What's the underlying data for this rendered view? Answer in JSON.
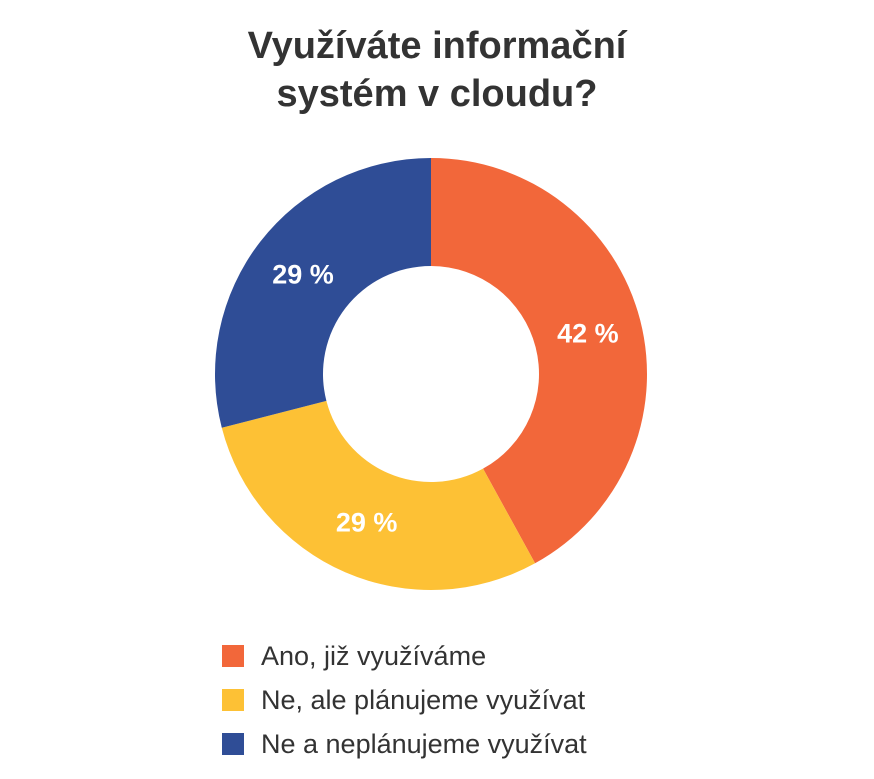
{
  "chart_data": {
    "type": "pie",
    "title_lines": [
      "Využíváte informační",
      "systém v cloudu?"
    ],
    "donut": true,
    "slices": [
      {
        "label": "Ano, již využíváme",
        "value": 42,
        "value_label": "42 %",
        "color": "#F2673A"
      },
      {
        "label": "Ne, ale plánujeme využívat",
        "value": 29,
        "value_label": "29 %",
        "color": "#FDC135"
      },
      {
        "label": "Ne a neplánujeme využívat",
        "value": 29,
        "value_label": "29 %",
        "color": "#2F4D96"
      }
    ],
    "legend_position": "bottom-left"
  }
}
